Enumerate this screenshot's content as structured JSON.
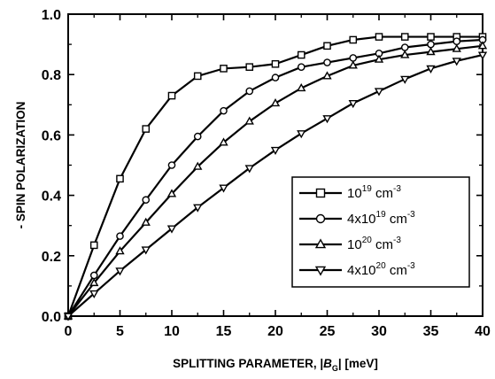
{
  "chart_data": {
    "type": "line",
    "xlabel_parts": [
      "SPLITTING PARAMETER, |",
      "B",
      "G",
      "| [meV]"
    ],
    "ylabel": "- SPIN POLARIZATION",
    "xlim": [
      0,
      40
    ],
    "ylim": [
      0.0,
      1.0
    ],
    "xticks": [
      "0",
      "5",
      "10",
      "15",
      "20",
      "25",
      "30",
      "35",
      "40"
    ],
    "yticks": [
      "0.0",
      "0.2",
      "0.4",
      "0.6",
      "0.8",
      "1.0"
    ],
    "grid": false,
    "legend_position": "bottom-right",
    "x": [
      0,
      2.5,
      5,
      7.5,
      10,
      12.5,
      15,
      17.5,
      20,
      22.5,
      25,
      27.5,
      30,
      32.5,
      35,
      37.5,
      40
    ],
    "series": [
      {
        "label_base": "10",
        "label_exp": "19",
        "label_unit": " cm",
        "label_unit_exp": "-3",
        "marker": "square",
        "values": [
          0.0,
          0.235,
          0.455,
          0.62,
          0.73,
          0.795,
          0.82,
          0.825,
          0.835,
          0.865,
          0.895,
          0.915,
          0.925,
          0.925,
          0.925,
          0.925,
          0.925
        ]
      },
      {
        "label_base": "4x10",
        "label_exp": "19",
        "label_unit": " cm",
        "label_unit_exp": "-3",
        "marker": "circle",
        "values": [
          0.0,
          0.135,
          0.265,
          0.385,
          0.5,
          0.595,
          0.68,
          0.745,
          0.79,
          0.825,
          0.84,
          0.855,
          0.87,
          0.89,
          0.9,
          0.91,
          0.915
        ]
      },
      {
        "label_base": "10",
        "label_exp": "20",
        "label_unit": " cm",
        "label_unit_exp": "-3",
        "marker": "triangle-up",
        "values": [
          0.0,
          0.11,
          0.215,
          0.31,
          0.405,
          0.495,
          0.575,
          0.645,
          0.705,
          0.755,
          0.795,
          0.83,
          0.85,
          0.865,
          0.875,
          0.885,
          0.895
        ]
      },
      {
        "label_base": "4x10",
        "label_exp": "20",
        "label_unit": " cm",
        "label_unit_exp": "-3",
        "marker": "triangle-down",
        "values": [
          0.0,
          0.075,
          0.15,
          0.22,
          0.29,
          0.36,
          0.425,
          0.49,
          0.55,
          0.605,
          0.655,
          0.705,
          0.745,
          0.785,
          0.82,
          0.845,
          0.865
        ]
      }
    ]
  }
}
